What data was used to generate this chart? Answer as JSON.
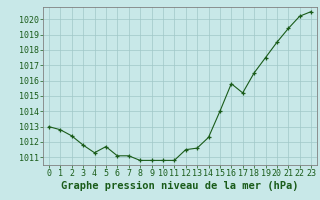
{
  "x": [
    0,
    1,
    2,
    3,
    4,
    5,
    6,
    7,
    8,
    9,
    10,
    11,
    12,
    13,
    14,
    15,
    16,
    17,
    18,
    19,
    20,
    21,
    22,
    23
  ],
  "y": [
    1013.0,
    1012.8,
    1012.4,
    1011.8,
    1011.3,
    1011.7,
    1011.1,
    1011.1,
    1010.8,
    1010.8,
    1010.8,
    1010.8,
    1011.5,
    1011.6,
    1012.3,
    1014.0,
    1015.8,
    1015.2,
    1016.5,
    1017.5,
    1018.5,
    1019.4,
    1020.2,
    1020.5
  ],
  "line_color": "#1a5c1a",
  "marker": "+",
  "marker_color": "#1a5c1a",
  "bg_color": "#c8e8e8",
  "grid_color": "#a0c8c8",
  "axis_color": "#808080",
  "xlabel": "Graphe pression niveau de la mer (hPa)",
  "xlabel_color": "#1a5c1a",
  "xlabel_fontsize": 7.5,
  "ylim": [
    1010.5,
    1020.8
  ],
  "xlim": [
    -0.5,
    23.5
  ],
  "tick_fontsize": 6,
  "fig_bg": "#c8e8e8"
}
